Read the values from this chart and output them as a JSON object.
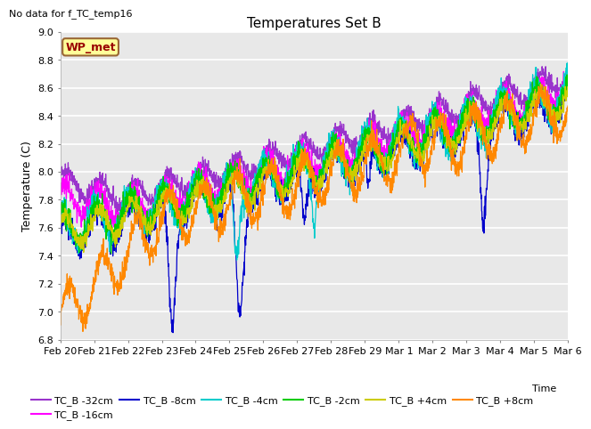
{
  "title": "Temperatures Set B",
  "top_left_text": "No data for f_TC_temp16",
  "ylabel": "Temperature (C)",
  "xlabel": "Time",
  "ylim": [
    6.8,
    9.0
  ],
  "series_colors": {
    "TC_B -32cm": "#9933cc",
    "TC_B -16cm": "#ff00ff",
    "TC_B -8cm": "#0000cc",
    "TC_B -4cm": "#00cccc",
    "TC_B -2cm": "#00cc00",
    "TC_B +4cm": "#cccc00",
    "TC_B +8cm": "#ff8800"
  },
  "series_order": [
    "TC_B -32cm",
    "TC_B -16cm",
    "TC_B -8cm",
    "TC_B -4cm",
    "TC_B -2cm",
    "TC_B +4cm",
    "TC_B +8cm"
  ],
  "yticks": [
    6.8,
    7.0,
    7.2,
    7.4,
    7.6,
    7.8,
    8.0,
    8.2,
    8.4,
    8.6,
    8.8,
    9.0
  ],
  "xtick_labels": [
    "Feb 20",
    "Feb 21",
    "Feb 22",
    "Feb 23",
    "Feb 24",
    "Feb 25",
    "Feb 26",
    "Feb 27",
    "Feb 28",
    "Feb 29",
    "Mar 1",
    "Mar 2",
    "Mar 3",
    "Mar 4",
    "Mar 5",
    "Mar 6"
  ],
  "wp_met_label": "WP_met",
  "wp_met_bg": "#ffff99",
  "wp_met_border": "#996633",
  "wp_met_text": "#990000",
  "plot_bg_color": "#e8e8e8",
  "n_points": 2000,
  "end_day": 15
}
